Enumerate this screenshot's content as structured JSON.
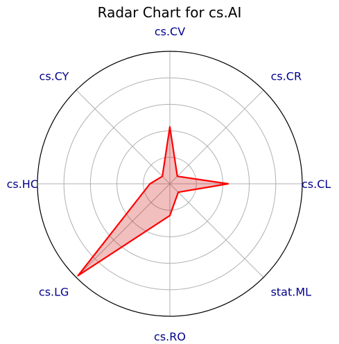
{
  "chart_data": {
    "type": "radar",
    "title": "Radar Chart for cs.AI",
    "categories": [
      "cs.CL",
      "cs.CR",
      "cs.CV",
      "cs.CY",
      "cs.HC",
      "cs.LG",
      "cs.RO",
      "stat.ML"
    ],
    "series": [
      {
        "values": [
          0.44,
          0.08,
          0.43,
          0.08,
          0.15,
          0.98,
          0.24,
          0.09
        ]
      }
    ],
    "rlim": [
      0,
      1.0
    ],
    "rings": 5,
    "grid": true,
    "colors": {
      "line": "#ff0000",
      "fill": "#cc0000",
      "fill_opacity": 0.25,
      "label": "#00008b",
      "grid": "#b0b0b0",
      "frame": "#000000"
    }
  }
}
